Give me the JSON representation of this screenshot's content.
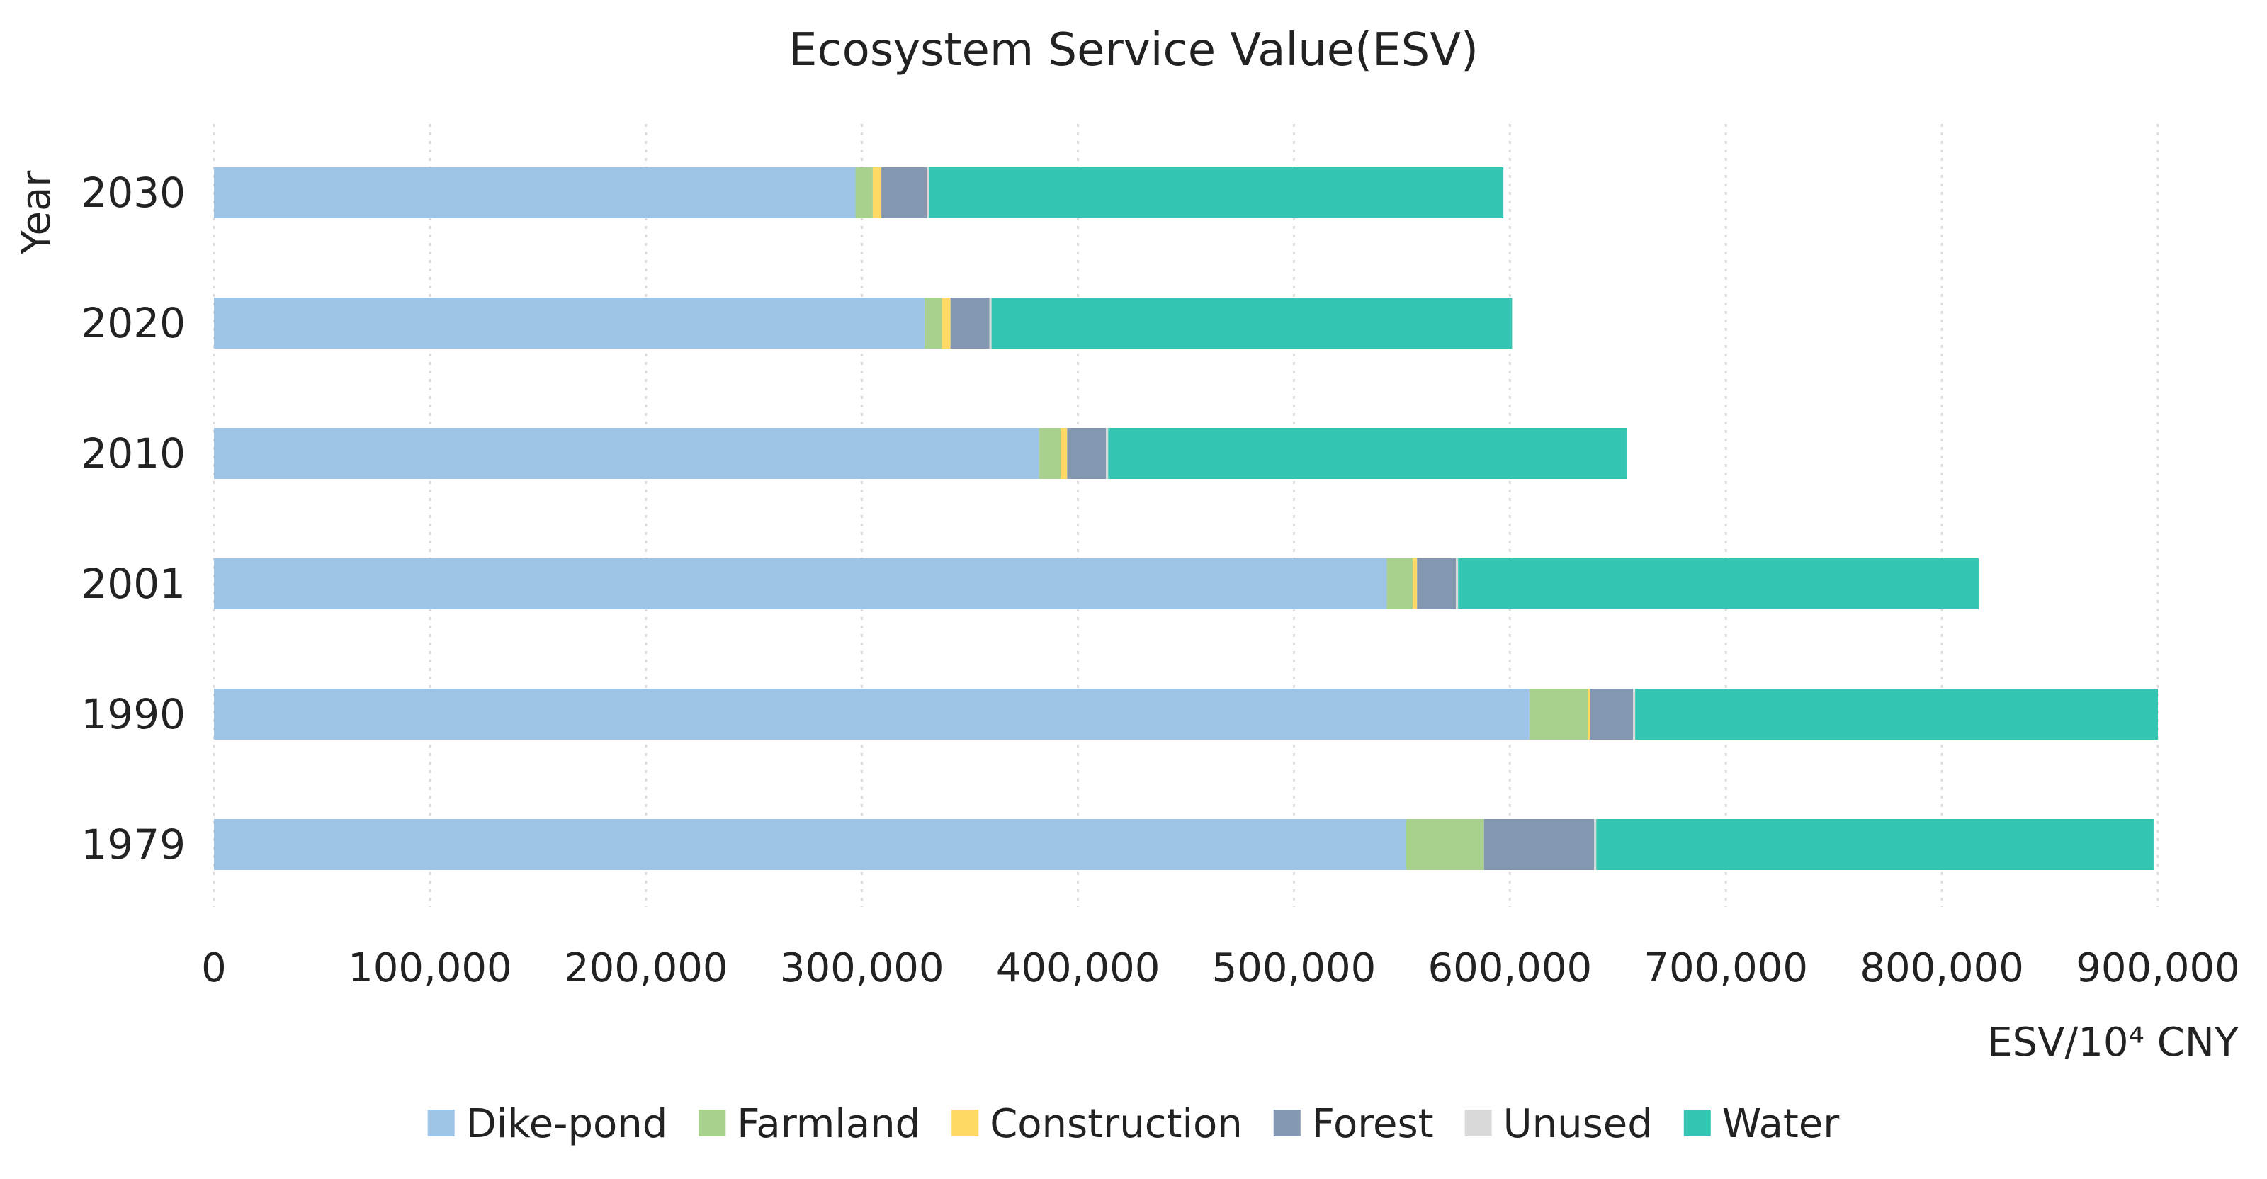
{
  "chart_data": {
    "type": "bar",
    "orientation": "horizontal",
    "stacked": true,
    "title": "Ecosystem Service Value(ESV)",
    "ylabel": "Year",
    "xlabel": "ESV/10⁴ CNY",
    "xlim": [
      0,
      900000
    ],
    "xticks": [
      0,
      100000,
      200000,
      300000,
      400000,
      500000,
      600000,
      700000,
      800000,
      900000
    ],
    "xtick_labels": [
      "0",
      "100,000",
      "200,000",
      "300,000",
      "400,000",
      "500,000",
      "600,000",
      "700,000",
      "800,000",
      "900,000"
    ],
    "grid": "vertical dotted",
    "legend_position": "bottom",
    "categories": [
      "2030",
      "2020",
      "2010",
      "2001",
      "1990",
      "1979"
    ],
    "series": [
      {
        "name": "Dike-pond",
        "color": "#9dc3e6",
        "values": [
          297000,
          329000,
          382000,
          543000,
          609000,
          552000
        ]
      },
      {
        "name": "Farmland",
        "color": "#a9d18e",
        "values": [
          8000,
          8000,
          10000,
          12000,
          27000,
          36000
        ]
      },
      {
        "name": "Construction",
        "color": "#ffd966",
        "values": [
          4000,
          4000,
          3000,
          2000,
          1000,
          0
        ]
      },
      {
        "name": "Forest",
        "color": "#8497b0",
        "values": [
          21000,
          18000,
          18000,
          18000,
          20000,
          51000
        ]
      },
      {
        "name": "Unused",
        "color": "#d9d9d9",
        "values": [
          1000,
          1000,
          1000,
          1000,
          1000,
          1000
        ]
      },
      {
        "name": "Water",
        "color": "#35c6b3",
        "values": [
          266000,
          241000,
          240000,
          241000,
          242000,
          258000
        ]
      }
    ]
  }
}
